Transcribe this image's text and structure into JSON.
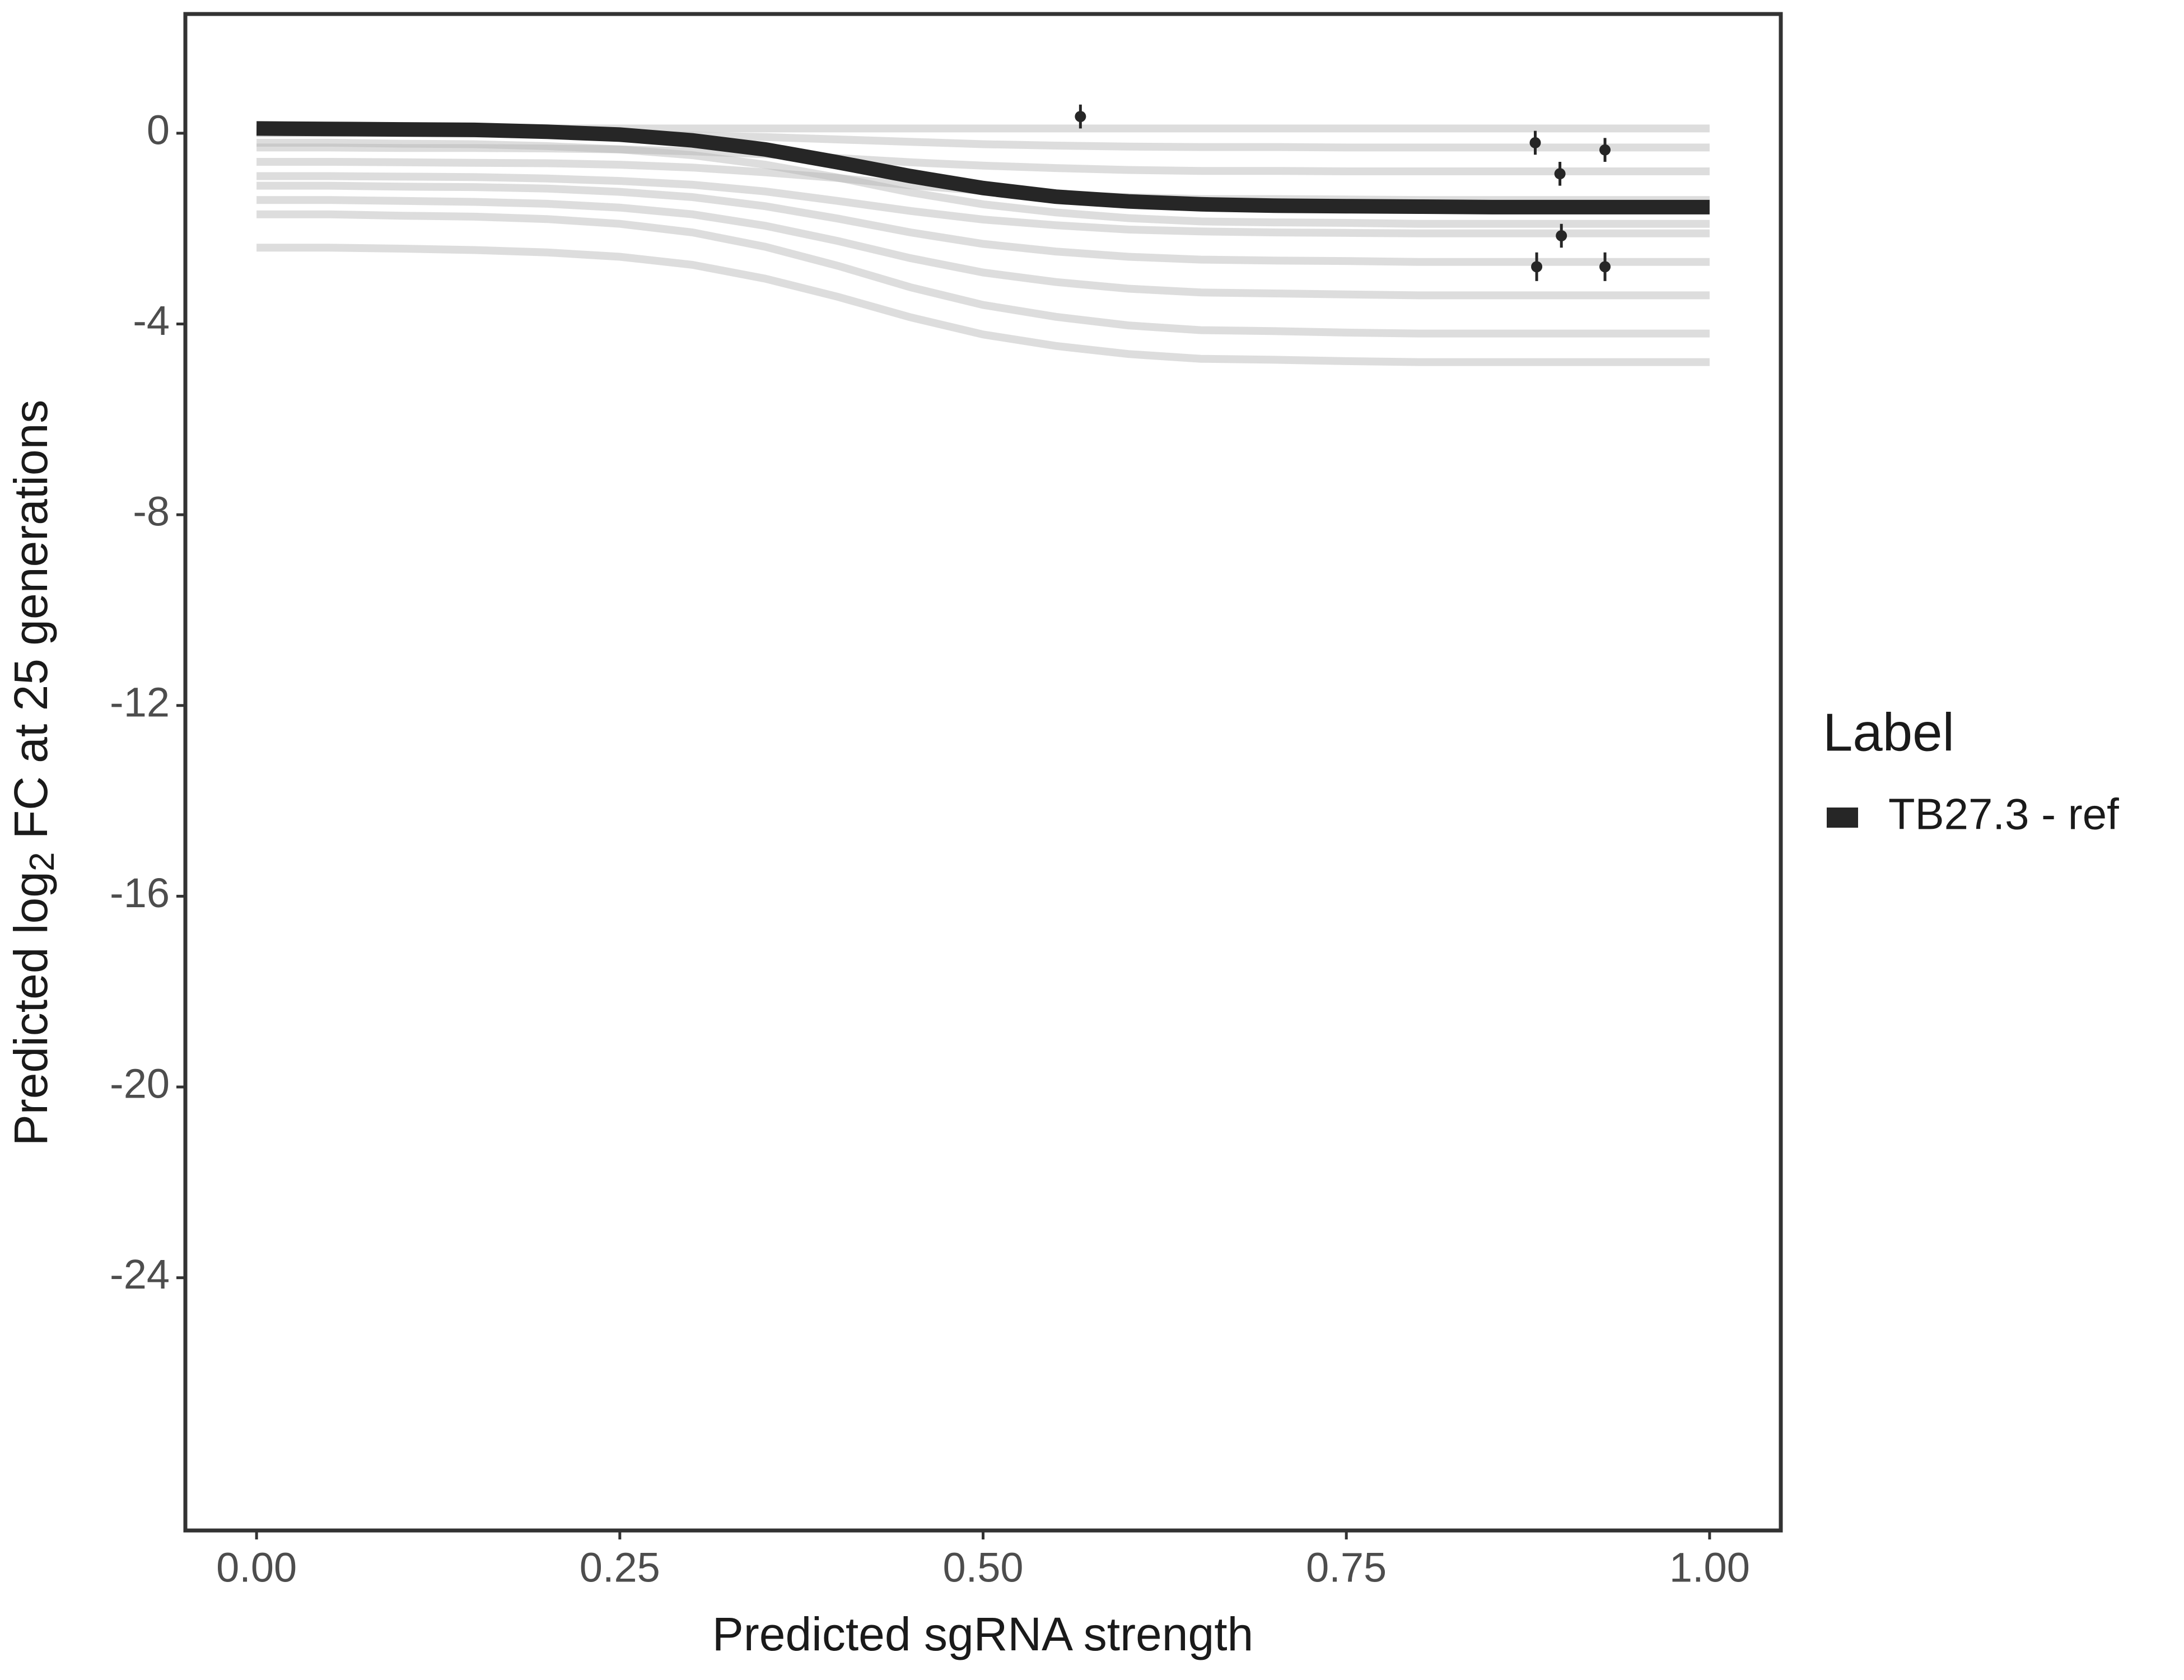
{
  "chart_data": {
    "type": "line",
    "xlabel": "Predicted sgRNA strength",
    "ylabel_parts": [
      "Predicted  log",
      "2",
      " FC at 25 generations"
    ],
    "legend_title": "Label",
    "xlim": [
      -0.049,
      1.049
    ],
    "ylim": [
      -29.3,
      2.5
    ],
    "xticks": [
      {
        "value": 0,
        "label": "0.00"
      },
      {
        "value": 0.25,
        "label": "0.25"
      },
      {
        "value": 0.5,
        "label": "0.50"
      },
      {
        "value": 0.75,
        "label": "0.75"
      },
      {
        "value": 1,
        "label": "1.00"
      }
    ],
    "yticks": [
      0,
      -4,
      -8,
      -12,
      -16,
      -20,
      -24
    ],
    "x": [
      0,
      0.05,
      0.1,
      0.15,
      0.2,
      0.25,
      0.3,
      0.35,
      0.4,
      0.45,
      0.5,
      0.55,
      0.6,
      0.65,
      0.7,
      0.75,
      0.8,
      0.85,
      0.9,
      0.95,
      1
    ],
    "series": [
      {
        "name": "TB27.3 - ref",
        "color": "#262626",
        "values": [
          0.1,
          0.09,
          0.08,
          0.07,
          0.03,
          -0.03,
          -0.15,
          -0.34,
          -0.61,
          -0.9,
          -1.15,
          -1.33,
          -1.43,
          -1.49,
          -1.52,
          -1.53,
          -1.54,
          -1.55,
          -1.55,
          -1.55,
          -1.55
        ]
      }
    ],
    "draws": {
      "color": "#b3b3b3",
      "lines": [
        [
          0.1,
          0.1,
          0.1,
          0.1,
          0.1,
          0.1,
          0.1,
          0.1,
          0.1,
          0.1,
          0.1,
          0.1,
          0.1,
          0.1,
          0.1,
          0.1,
          0.1,
          0.1,
          0.1,
          0.1,
          0.1
        ],
        [
          0,
          0,
          0,
          -0.01,
          -0.01,
          -0.02,
          -0.05,
          -0.08,
          -0.13,
          -0.18,
          -0.23,
          -0.26,
          -0.28,
          -0.29,
          -0.29,
          -0.3,
          -0.3,
          -0.3,
          -0.3,
          -0.3,
          -0.3
        ],
        [
          -0.3,
          -0.3,
          -0.31,
          -0.31,
          -0.32,
          -0.34,
          -0.38,
          -0.44,
          -0.52,
          -0.61,
          -0.68,
          -0.73,
          -0.77,
          -0.79,
          -0.79,
          -0.8,
          -0.8,
          -0.8,
          -0.8,
          -0.8,
          -0.8
        ],
        [
          -0.6,
          -0.6,
          -0.61,
          -0.62,
          -0.63,
          -0.66,
          -0.72,
          -0.82,
          -0.94,
          -1.09,
          -1.21,
          -1.29,
          -1.34,
          -1.38,
          -1.38,
          -1.39,
          -1.4,
          -1.4,
          -1.4,
          -1.4,
          -1.4
        ],
        [
          -0.2,
          -0.2,
          -0.22,
          -0.23,
          -0.27,
          -0.34,
          -0.46,
          -0.66,
          -0.93,
          -1.24,
          -1.49,
          -1.66,
          -1.78,
          -1.85,
          -1.87,
          -1.88,
          -1.9,
          -1.9,
          -1.9,
          -1.9,
          -1.9
        ],
        [
          -0.9,
          -0.9,
          -0.91,
          -0.92,
          -0.95,
          -1.0,
          -1.08,
          -1.22,
          -1.42,
          -1.63,
          -1.81,
          -1.93,
          -2.02,
          -2.06,
          -2.08,
          -2.09,
          -2.1,
          -2.1,
          -2.1,
          -2.1,
          -2.1
        ],
        [
          -1.1,
          -1.1,
          -1.12,
          -1.13,
          -1.16,
          -1.23,
          -1.34,
          -1.53,
          -1.79,
          -2.08,
          -2.32,
          -2.48,
          -2.59,
          -2.65,
          -2.67,
          -2.68,
          -2.7,
          -2.7,
          -2.7,
          -2.7,
          -2.7
        ],
        [
          -1.4,
          -1.4,
          -1.42,
          -1.44,
          -1.48,
          -1.56,
          -1.7,
          -1.94,
          -2.26,
          -2.62,
          -2.92,
          -3.12,
          -3.26,
          -3.34,
          -3.36,
          -3.38,
          -3.4,
          -3.4,
          -3.4,
          -3.4,
          -3.4
        ],
        [
          -1.7,
          -1.7,
          -1.73,
          -1.75,
          -1.8,
          -1.9,
          -2.08,
          -2.38,
          -2.78,
          -3.23,
          -3.6,
          -3.85,
          -4.03,
          -4.13,
          -4.15,
          -4.18,
          -4.2,
          -4.2,
          -4.2,
          -4.2,
          -4.2
        ],
        [
          -2.4,
          -2.4,
          -2.42,
          -2.45,
          -2.5,
          -2.59,
          -2.76,
          -3.05,
          -3.43,
          -3.86,
          -4.22,
          -4.46,
          -4.63,
          -4.73,
          -4.75,
          -4.78,
          -4.8,
          -4.8,
          -4.8,
          -4.8,
          -4.8
        ]
      ]
    },
    "points": {
      "color": "#262626",
      "x": [
        0.567,
        0.88,
        0.897,
        0.928,
        0.898,
        0.881,
        0.928
      ],
      "values": [
        0.35,
        -0.2,
        -0.85,
        -0.35,
        -2.15,
        -2.8,
        -2.8
      ],
      "errors": [
        0.25,
        0.25,
        0.25,
        0.25,
        0.25,
        0.3,
        0.3
      ]
    }
  }
}
